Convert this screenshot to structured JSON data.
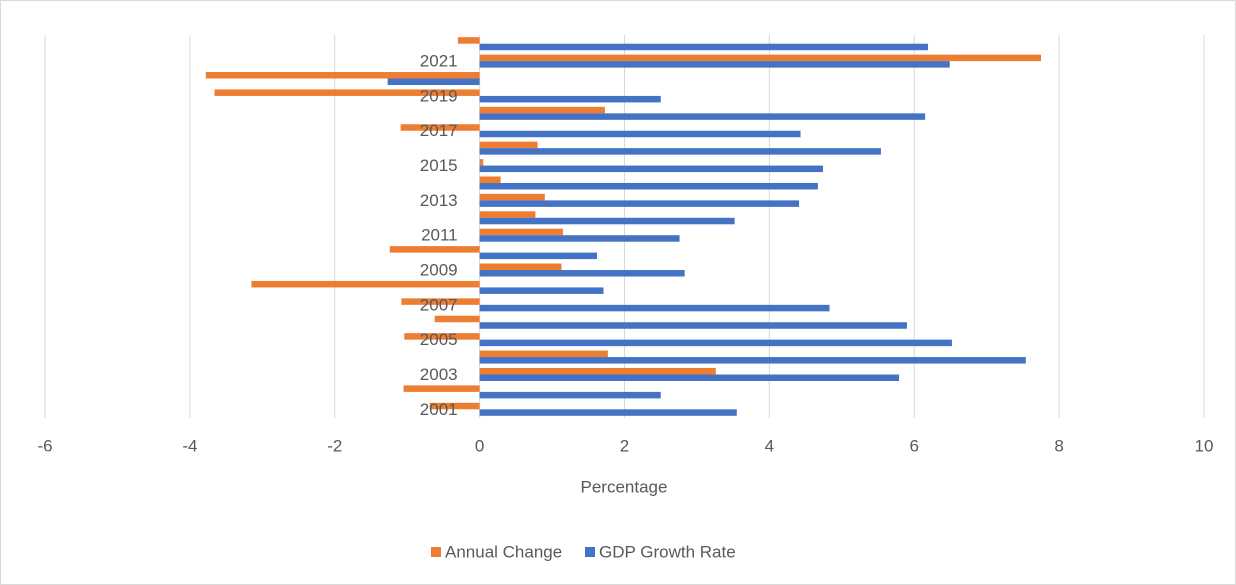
{
  "chart_data": {
    "type": "bar",
    "orientation": "horizontal",
    "categories": [
      "2001",
      null,
      "2003",
      null,
      "2005",
      null,
      "2007",
      null,
      "2009",
      null,
      "2011",
      null,
      "2013",
      null,
      "2015",
      null,
      "2017",
      null,
      "2019",
      null,
      "2021",
      null
    ],
    "series": [
      {
        "name": "Annual Change",
        "color": "#ED7D31",
        "values": [
          -0.69,
          -1.05,
          3.26,
          1.77,
          -1.04,
          -0.62,
          -1.08,
          -3.15,
          1.13,
          -1.24,
          1.15,
          0.77,
          0.9,
          0.29,
          0.05,
          0.8,
          -1.09,
          1.73,
          -3.66,
          -3.78,
          7.75,
          -0.3
        ]
      },
      {
        "name": "GDP Growth Rate",
        "color": "#4472C4",
        "values": [
          3.55,
          2.5,
          5.79,
          7.54,
          6.52,
          5.9,
          4.83,
          1.71,
          2.83,
          1.62,
          2.76,
          3.52,
          4.41,
          4.67,
          4.74,
          5.54,
          4.43,
          6.15,
          2.5,
          -1.27,
          6.49,
          6.19
        ]
      }
    ],
    "xlabel": "Percentage",
    "xlim": [
      -6,
      10
    ],
    "xticks": [
      -6,
      -4,
      -2,
      0,
      2,
      4,
      6,
      8,
      10
    ],
    "grid": true,
    "legend": "bottom"
  }
}
